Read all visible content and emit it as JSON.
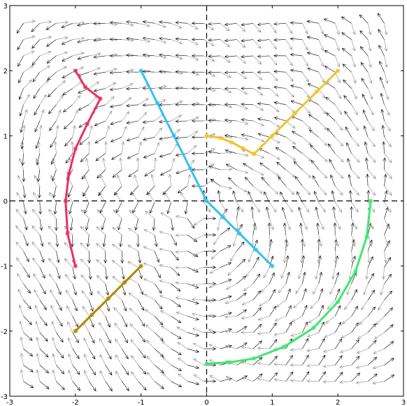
{
  "chart_data": {
    "type": "line",
    "title": "",
    "xlabel": "",
    "ylabel": "",
    "xlim": [
      -3,
      3
    ],
    "ylim": [
      -3,
      3
    ],
    "xticks": [
      -3,
      -2,
      -1,
      0,
      1,
      2,
      3
    ],
    "yticks": [
      -3,
      -2,
      -1,
      0,
      1,
      2,
      3
    ],
    "grid": false,
    "axes_crosshair": "dashed",
    "vector_field": {
      "spacing": 0.25,
      "style": "paired black and gray arrows"
    },
    "series": [
      {
        "color": "#e8315f",
        "marker": "*",
        "points": [
          [
            -2.0,
            2.0
          ],
          [
            -1.85,
            1.75
          ],
          [
            -1.62,
            1.57
          ],
          [
            -1.82,
            1.18
          ],
          [
            -2.0,
            0.8
          ],
          [
            -2.1,
            0.42
          ],
          [
            -2.15,
            0.0
          ],
          [
            -2.12,
            -0.5
          ],
          [
            -2.0,
            -1.0
          ]
        ]
      },
      {
        "color": "#35c0f0",
        "marker": "*",
        "points": [
          [
            -1.0,
            2.0
          ],
          [
            -0.75,
            1.5
          ],
          [
            -0.5,
            1.0
          ],
          [
            -0.25,
            0.5
          ],
          [
            0.0,
            0.0
          ],
          [
            0.25,
            -0.25
          ],
          [
            0.5,
            -0.5
          ],
          [
            0.75,
            -0.75
          ],
          [
            1.0,
            -1.0
          ]
        ]
      },
      {
        "color": "#f4c22b",
        "marker": "*",
        "points": [
          [
            0.0,
            1.0
          ],
          [
            0.2,
            0.97
          ],
          [
            0.38,
            0.9
          ],
          [
            0.55,
            0.81
          ],
          [
            0.72,
            0.72
          ],
          [
            1.0,
            1.0
          ],
          [
            1.35,
            1.35
          ],
          [
            1.68,
            1.68
          ],
          [
            2.0,
            2.0
          ]
        ]
      },
      {
        "color": "#b38600",
        "marker": "*",
        "points": [
          [
            -1.0,
            -1.0
          ],
          [
            -1.25,
            -1.25
          ],
          [
            -1.5,
            -1.5
          ],
          [
            -1.75,
            -1.75
          ],
          [
            -2.0,
            -2.0
          ]
        ]
      },
      {
        "color": "#3fe86f",
        "marker": "*",
        "points": [
          [
            2.5,
            0.0
          ],
          [
            2.44,
            -0.55
          ],
          [
            2.27,
            -1.08
          ],
          [
            2.0,
            -1.55
          ],
          [
            1.63,
            -1.95
          ],
          [
            1.18,
            -2.24
          ],
          [
            0.72,
            -2.42
          ],
          [
            0.35,
            -2.48
          ],
          [
            0.0,
            -2.5
          ]
        ]
      }
    ]
  }
}
